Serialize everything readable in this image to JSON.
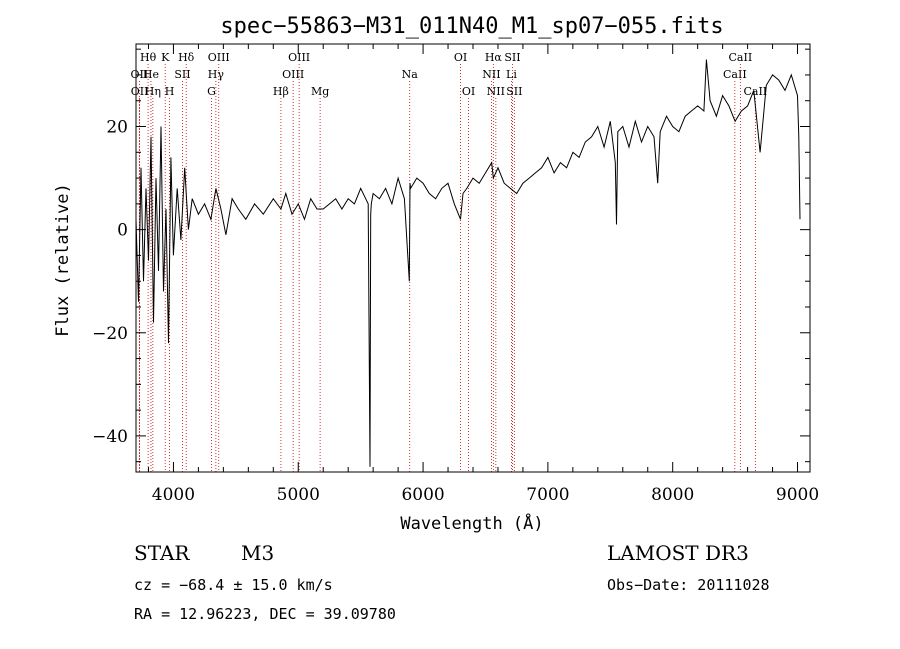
{
  "chart_data": {
    "type": "line",
    "title": "spec−55863−M31_011N40_M1_sp07−055.fits",
    "xlabel": "Wavelength (Å)",
    "ylabel": "Flux (relative)",
    "xlim": [
      3700,
      9100
    ],
    "ylim": [
      -47,
      36
    ],
    "xticks": [
      4000,
      5000,
      6000,
      7000,
      8000,
      9000
    ],
    "yticks": [
      -40,
      -20,
      0,
      20
    ],
    "series": [
      {
        "name": "spectrum",
        "x": [
          3700,
          3720,
          3740,
          3760,
          3780,
          3800,
          3820,
          3840,
          3860,
          3880,
          3900,
          3920,
          3940,
          3960,
          3980,
          4000,
          4030,
          4060,
          4090,
          4120,
          4150,
          4200,
          4250,
          4300,
          4340,
          4380,
          4420,
          4470,
          4520,
          4580,
          4650,
          4720,
          4800,
          4861,
          4900,
          4950,
          5000,
          5050,
          5100,
          5150,
          5200,
          5250,
          5300,
          5350,
          5400,
          5450,
          5500,
          5540,
          5560,
          5575,
          5580,
          5585,
          5600,
          5650,
          5700,
          5750,
          5800,
          5850,
          5890,
          5895,
          5900,
          5950,
          6000,
          6050,
          6100,
          6150,
          6200,
          6250,
          6300,
          6320,
          6350,
          6400,
          6450,
          6500,
          6550,
          6563,
          6600,
          6650,
          6700,
          6750,
          6800,
          6850,
          6900,
          6950,
          7000,
          7050,
          7100,
          7150,
          7200,
          7250,
          7300,
          7350,
          7400,
          7450,
          7500,
          7540,
          7550,
          7560,
          7600,
          7650,
          7700,
          7750,
          7800,
          7850,
          7880,
          7900,
          7950,
          8000,
          8050,
          8100,
          8150,
          8200,
          8250,
          8270,
          8300,
          8350,
          8400,
          8450,
          8500,
          8550,
          8600,
          8650,
          8700,
          8750,
          8800,
          8850,
          8900,
          8950,
          9000,
          9010,
          9020
        ],
        "y": [
          2,
          -14,
          12,
          -10,
          8,
          -6,
          18,
          -18,
          10,
          -8,
          20,
          -12,
          4,
          -22,
          14,
          -5,
          8,
          -2,
          12,
          0,
          6,
          3,
          5,
          2,
          8,
          4,
          -1,
          6,
          4,
          2,
          5,
          3,
          6,
          4,
          7,
          3,
          5,
          2,
          6,
          4,
          4,
          5,
          6,
          4,
          6,
          5,
          8,
          6,
          5,
          -46,
          3,
          5,
          7,
          6,
          8,
          5,
          10,
          6,
          -10,
          9,
          8,
          10,
          9,
          7,
          6,
          8,
          9,
          5,
          2,
          7,
          8,
          10,
          9,
          11,
          13,
          10,
          12,
          9,
          8,
          7,
          9,
          10,
          11,
          12,
          14,
          11,
          13,
          12,
          15,
          14,
          17,
          18,
          20,
          16,
          21,
          13,
          1,
          19,
          20,
          16,
          21,
          17,
          20,
          18,
          9,
          19,
          22,
          20,
          19,
          22,
          23,
          24,
          23,
          33,
          25,
          22,
          26,
          24,
          21,
          23,
          24,
          27,
          15,
          28,
          30,
          29,
          27,
          30,
          26,
          18,
          2
        ]
      }
    ],
    "emission_lines": [
      {
        "label": "OII",
        "wavelength": 3727,
        "row": 2
      },
      {
        "label": "Hθ",
        "wavelength": 3797,
        "row": 1
      },
      {
        "label": "OII",
        "wavelength": 3729,
        "row": 3
      },
      {
        "label": "He",
        "wavelength": 3820,
        "row": 2
      },
      {
        "label": "Hη",
        "wavelength": 3835,
        "row": 3
      },
      {
        "label": "K",
        "wavelength": 3934,
        "row": 1
      },
      {
        "label": "H",
        "wavelength": 3969,
        "row": 3
      },
      {
        "label": "SII",
        "wavelength": 4072,
        "row": 2
      },
      {
        "label": "Hδ",
        "wavelength": 4102,
        "row": 1
      },
      {
        "label": "OIII",
        "wavelength": 4363,
        "row": 1
      },
      {
        "label": "Hγ",
        "wavelength": 4340,
        "row": 2
      },
      {
        "label": "G",
        "wavelength": 4305,
        "row": 3
      },
      {
        "label": "Hβ",
        "wavelength": 4861,
        "row": 3
      },
      {
        "label": "OIII",
        "wavelength": 4959,
        "row": 2
      },
      {
        "label": "OIII",
        "wavelength": 5007,
        "row": 1
      },
      {
        "label": "Mg",
        "wavelength": 5175,
        "row": 3
      },
      {
        "label": "Na",
        "wavelength": 5893,
        "row": 2
      },
      {
        "label": "OI",
        "wavelength": 6300,
        "row": 1
      },
      {
        "label": "OI",
        "wavelength": 6364,
        "row": 3
      },
      {
        "label": "Hα",
        "wavelength": 6563,
        "row": 1
      },
      {
        "label": "NII",
        "wavelength": 6548,
        "row": 2
      },
      {
        "label": "NII",
        "wavelength": 6583,
        "row": 3
      },
      {
        "label": "SII",
        "wavelength": 6716,
        "row": 1
      },
      {
        "label": "Li",
        "wavelength": 6708,
        "row": 2
      },
      {
        "label": "SII",
        "wavelength": 6731,
        "row": 3
      },
      {
        "label": "CaII",
        "wavelength": 8498,
        "row": 2
      },
      {
        "label": "CaII",
        "wavelength": 8542,
        "row": 1
      },
      {
        "label": "CaII",
        "wavelength": 8662,
        "row": 3
      }
    ]
  },
  "info": {
    "class": "STAR",
    "subclass": "M3",
    "survey": "LAMOST DR3",
    "cz": "cz = −68.4 ± 15.0 km/s",
    "obs_date": "Obs−Date: 20111028",
    "coords": "RA =  12.96223, DEC =  39.09780"
  },
  "colors": {
    "spectrum": "#000000",
    "lines": "#cc0000",
    "axes": "#000000"
  }
}
